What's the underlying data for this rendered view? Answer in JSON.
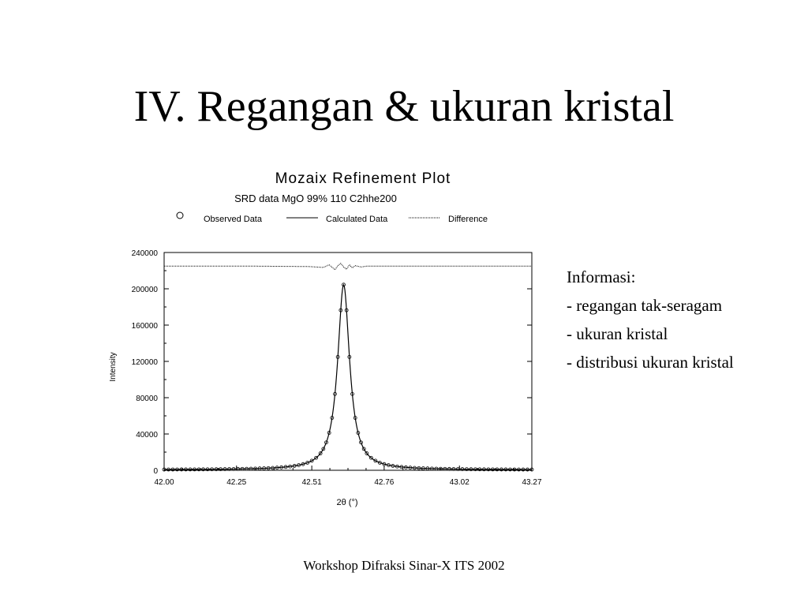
{
  "slide": {
    "title": "IV. Regangan & ukuran kristal",
    "footer": "Workshop Difraksi Sinar-X ITS 2002",
    "info": {
      "heading": "Informasi:",
      "items": [
        "- regangan tak-seragam",
        "- ukuran kristal",
        "- distribusi ukuran kristal"
      ]
    }
  },
  "chart_data": {
    "type": "line",
    "title": "Mozaix Refinement Plot",
    "subtitle": "SRD data MgO 99% 110 C2hhe200",
    "xlabel": "2θ (°)",
    "ylabel": "Intensity",
    "xlim": [
      42.0,
      43.27
    ],
    "ylim": [
      0,
      240000
    ],
    "x_ticks": [
      "42.00",
      "42.25",
      "42.51",
      "42.76",
      "43.02",
      "43.27"
    ],
    "y_ticks": [
      "0",
      "40000",
      "80000",
      "120000",
      "160000",
      "200000",
      "240000"
    ],
    "legend": {
      "placement": "top",
      "entries": [
        "Observed Data",
        "Calculated Data",
        "Difference"
      ]
    },
    "colors": {
      "line": "#000000",
      "marker": "#000000"
    },
    "peak": {
      "center": 42.62,
      "height": 204000,
      "half_width": 0.025
    },
    "difference_offset": 225000,
    "observed_x": [
      42.0,
      42.015,
      42.03,
      42.045,
      42.06,
      42.075,
      42.09,
      42.105,
      42.12,
      42.135,
      42.15,
      42.165,
      42.18,
      42.195,
      42.21,
      42.225,
      42.24,
      42.255,
      42.27,
      42.285,
      42.3,
      42.315,
      42.33,
      42.345,
      42.36,
      42.375,
      42.39,
      42.405,
      42.42,
      42.435,
      42.45,
      42.465,
      42.48,
      42.495,
      42.51,
      42.525,
      42.54,
      42.55,
      42.56,
      42.57,
      42.58,
      42.59,
      42.6,
      42.61,
      42.62,
      42.63,
      42.64,
      42.65,
      42.66,
      42.67,
      42.68,
      42.69,
      42.7,
      42.715,
      42.73,
      42.745,
      42.76,
      42.775,
      42.79,
      42.805,
      42.82,
      42.835,
      42.85,
      42.865,
      42.88,
      42.895,
      42.91,
      42.925,
      42.94,
      42.955,
      42.97,
      42.985,
      43.0,
      43.015,
      43.03,
      43.045,
      43.06,
      43.075,
      43.09,
      43.105,
      43.12,
      43.135,
      43.15,
      43.165,
      43.18,
      43.195,
      43.21,
      43.225,
      43.24,
      43.255,
      43.27
    ],
    "difference_x": [
      42.0,
      42.3,
      42.5,
      42.55,
      42.57,
      42.59,
      42.6,
      42.61,
      42.62,
      42.63,
      42.64,
      42.65,
      42.66,
      42.68,
      42.7,
      42.75,
      43.27
    ],
    "difference_y": [
      225000,
      225000,
      224500,
      223500,
      226500,
      221000,
      225500,
      228000,
      224000,
      221500,
      226500,
      223000,
      225500,
      224000,
      225000,
      225000,
      225000
    ]
  }
}
